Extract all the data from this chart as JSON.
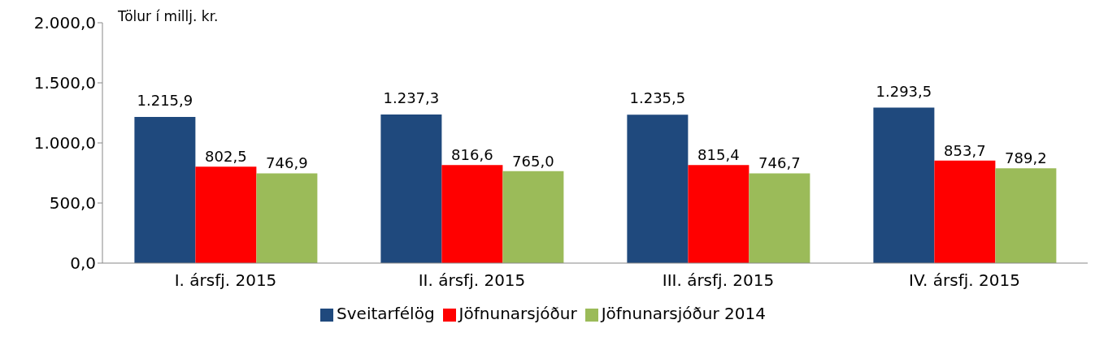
{
  "chart_data": {
    "type": "bar",
    "ylabel": "Tölur í millj. kr.",
    "categories": [
      "I. ársfj. 2015",
      "II. ársfj. 2015",
      "III. ársfj. 2015",
      "IV. ársfj. 2015"
    ],
    "series": [
      {
        "name": "Sveitarfélög",
        "color": "#1f497d",
        "values": [
          1215.9,
          1237.3,
          1235.5,
          1293.5
        ],
        "value_labels": [
          "1.215,9",
          "1.237,3",
          "1.235,5",
          "1.293,5"
        ]
      },
      {
        "name": "Jöfnunarsjóður",
        "color": "#ff0000",
        "values": [
          802.5,
          816.6,
          815.4,
          853.7
        ],
        "value_labels": [
          "802,5",
          "816,6",
          "815,4",
          "853,7"
        ]
      },
      {
        "name": "Jöfnunarsjóður 2014",
        "color": "#9bbb59",
        "values": [
          746.9,
          765.0,
          746.7,
          789.2
        ],
        "value_labels": [
          "746,9",
          "765,0",
          "746,7",
          "789,2"
        ]
      }
    ],
    "ylim": [
      0,
      2000
    ],
    "yticks": [
      {
        "value": 0,
        "label": "0,0"
      },
      {
        "value": 500,
        "label": "500,0"
      },
      {
        "value": 1000,
        "label": "1.000,0"
      },
      {
        "value": 1500,
        "label": "1.500,0"
      },
      {
        "value": 2000,
        "label": "2.000,0"
      }
    ],
    "grid": false,
    "legend": "bottom"
  }
}
